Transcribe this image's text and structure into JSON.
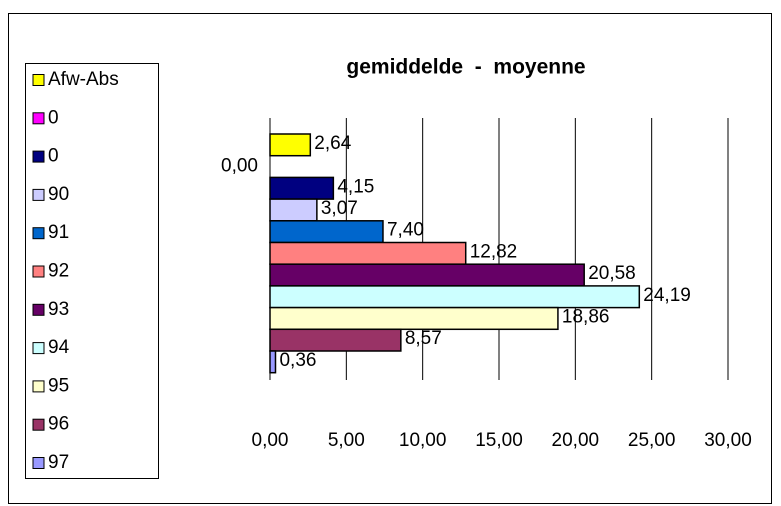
{
  "chart_data": {
    "type": "hbar",
    "title": "gemiddelde  -  moyenne",
    "categories": [
      "Afw-Abs",
      "0",
      "0",
      "90",
      "91",
      "92",
      "93",
      "94",
      "95",
      "96",
      "97"
    ],
    "values": [
      2.64,
      0.0,
      4.15,
      3.07,
      7.4,
      12.82,
      20.58,
      24.19,
      18.86,
      8.57,
      0.36
    ],
    "value_labels": [
      "2,64",
      "0,00",
      "4,15",
      "3,07",
      "7,40",
      "12,82",
      "20,58",
      "24,19",
      "18,86",
      "8,57",
      "0,36"
    ],
    "colors": [
      "#ffff00",
      "#ff00ff",
      "#000080",
      "#ccccff",
      "#0066cc",
      "#ff8080",
      "#660066",
      "#ccffff",
      "#ffffcc",
      "#993366",
      "#9999ff"
    ],
    "xlim": [
      0,
      30
    ],
    "xticks": [
      {
        "value": 0,
        "label": "0,00"
      },
      {
        "value": 5,
        "label": "5,00"
      },
      {
        "value": 10,
        "label": "10,00"
      },
      {
        "value": 15,
        "label": "15,00"
      },
      {
        "value": 20,
        "label": "20,00"
      },
      {
        "value": 25,
        "label": "25,00"
      },
      {
        "value": 30,
        "label": "30,00"
      }
    ],
    "grid": true,
    "legend": "left"
  }
}
